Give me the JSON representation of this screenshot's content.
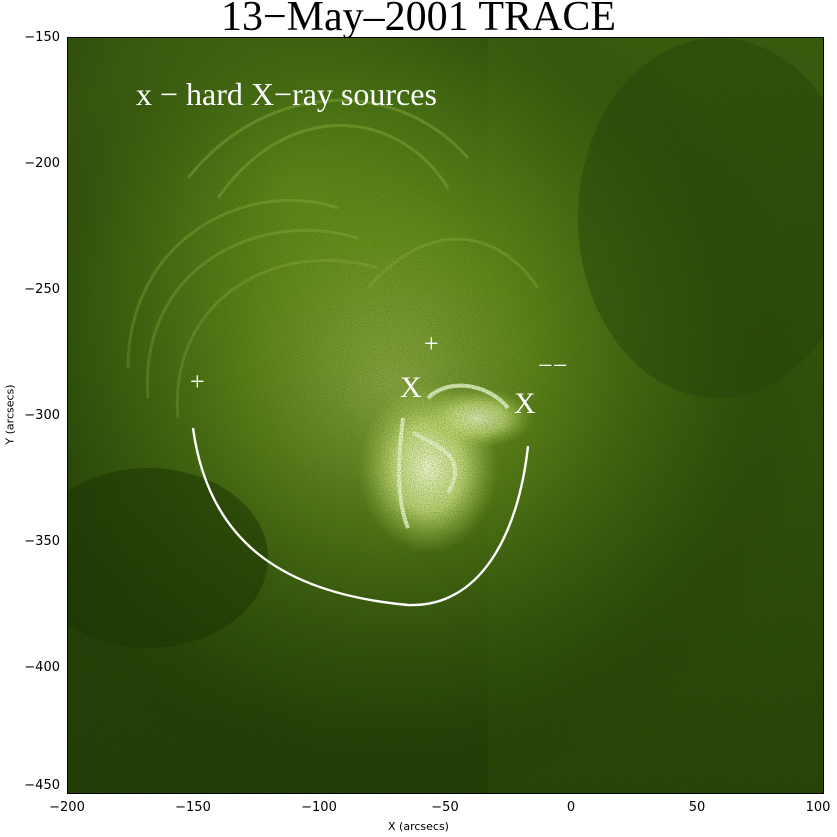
{
  "title": "13−May–2001 TRACE",
  "annotation": "x − hard X−ray sources",
  "axes": {
    "xlabel": "X (arcsecs)",
    "ylabel": "Y (arcsecs)",
    "x_ticks": [
      "−200",
      "−150",
      "−100",
      "−50",
      "0",
      "50",
      "100"
    ],
    "y_ticks": [
      "−150",
      "−200",
      "−250",
      "−300",
      "−350",
      "−400",
      "−450"
    ],
    "xlim": [
      -200,
      100
    ],
    "ylim": [
      -450,
      -150
    ]
  },
  "markers": {
    "hxr_symbol": "X",
    "plus_symbol": "+"
  },
  "colors": {
    "background_dark": "#1f3a0a",
    "mid_green": "#6a9a1c",
    "bright_green": "#c8e070",
    "highlight": "#f0ffd0",
    "curve": "#ffffff"
  }
}
